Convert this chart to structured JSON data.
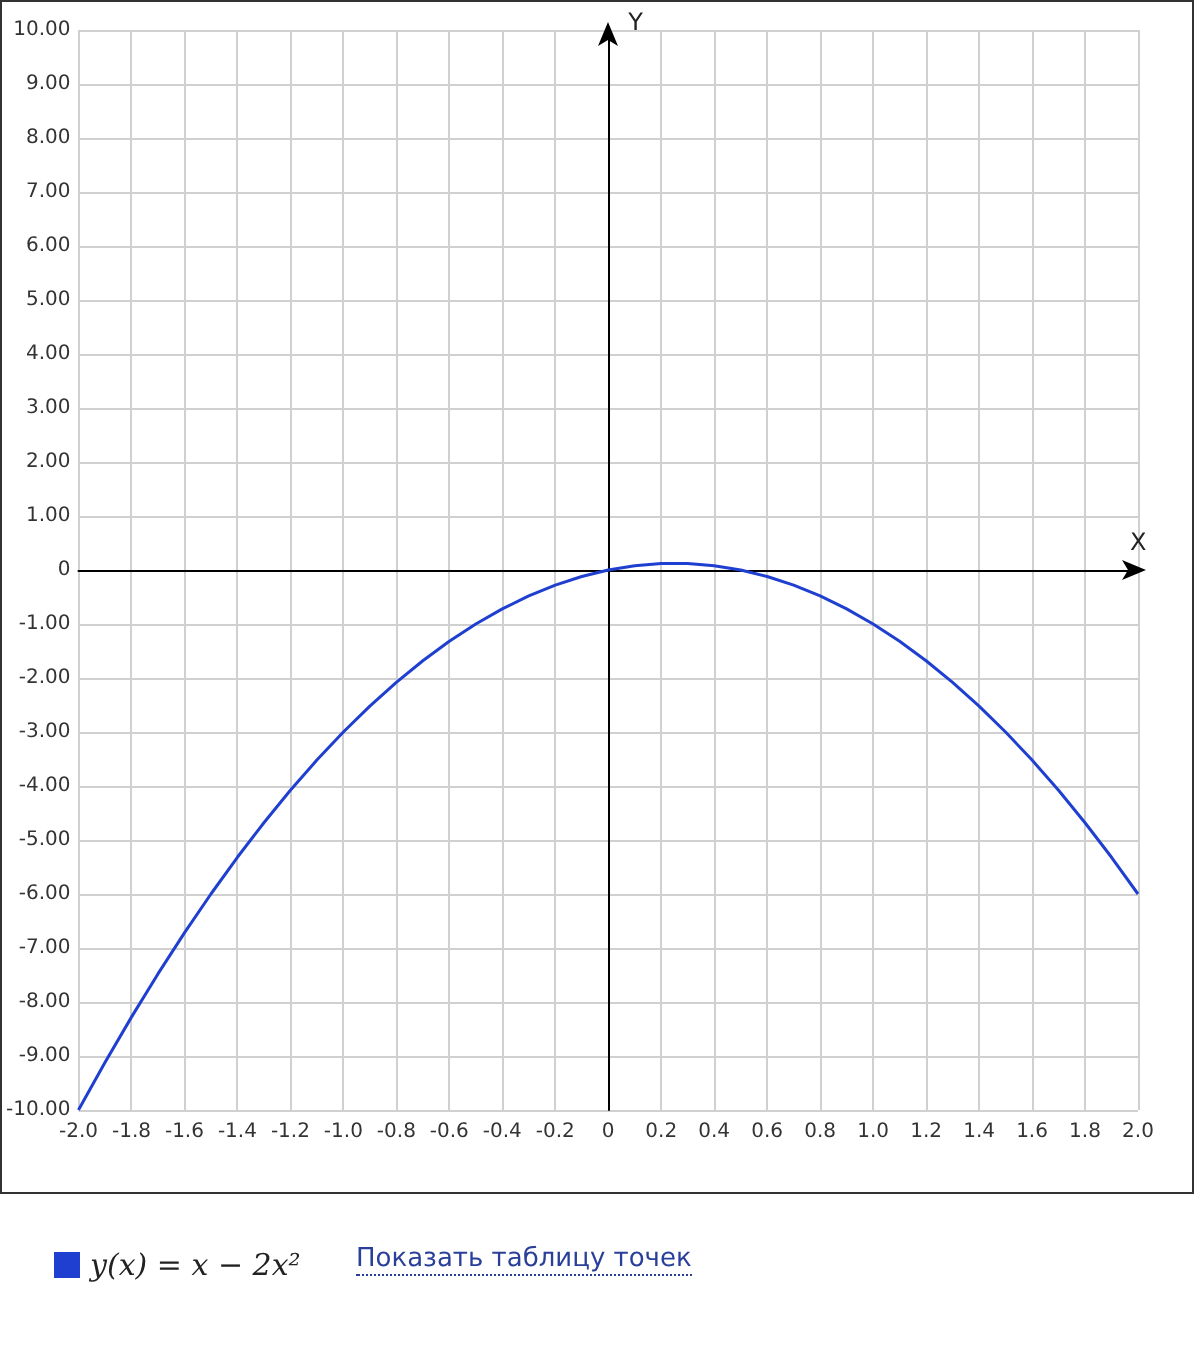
{
  "chart_data": {
    "type": "line",
    "xlabel": "X",
    "ylabel": "Y",
    "x": [
      -2.0,
      -1.9,
      -1.8,
      -1.7,
      -1.6,
      -1.5,
      -1.4,
      -1.3,
      -1.2,
      -1.1,
      -1.0,
      -0.9,
      -0.8,
      -0.7,
      -0.6,
      -0.5,
      -0.4,
      -0.3,
      -0.2,
      -0.1,
      0,
      0.1,
      0.2,
      0.3,
      0.4,
      0.5,
      0.6,
      0.7,
      0.8,
      0.9,
      1.0,
      1.1,
      1.2,
      1.3,
      1.4,
      1.5,
      1.6,
      1.7,
      1.8,
      1.9,
      2.0
    ],
    "series": [
      {
        "name": "y(x) = x − 2x²",
        "color": "#1f3fd0",
        "values": [
          -10,
          -9.12,
          -8.28,
          -7.48,
          -6.72,
          -6,
          -5.32,
          -4.68,
          -4.08,
          -3.52,
          -3,
          -2.52,
          -2.08,
          -1.68,
          -1.32,
          -1,
          -0.72,
          -0.48,
          -0.28,
          -0.12,
          0,
          0.08,
          0.12,
          0.12,
          0.08,
          0,
          -0.12,
          -0.28,
          -0.48,
          -0.72,
          -1,
          -1.32,
          -1.68,
          -2.08,
          -2.52,
          -3,
          -3.52,
          -4.08,
          -4.68,
          -5.32,
          -6
        ]
      }
    ],
    "xlim": [
      -2,
      2
    ],
    "ylim": [
      -10,
      10
    ],
    "xticks": [
      {
        "value": -2,
        "label": "-2.0"
      },
      {
        "value": -1.8,
        "label": "-1.8"
      },
      {
        "value": -1.6,
        "label": "-1.6"
      },
      {
        "value": -1.4,
        "label": "-1.4"
      },
      {
        "value": -1.2,
        "label": "-1.2"
      },
      {
        "value": -1,
        "label": "-1.0"
      },
      {
        "value": -0.8,
        "label": "-0.8"
      },
      {
        "value": -0.6,
        "label": "-0.6"
      },
      {
        "value": -0.4,
        "label": "-0.4"
      },
      {
        "value": -0.2,
        "label": "-0.2"
      },
      0,
      {
        "value": 0.2,
        "label": "0.2"
      },
      {
        "value": 0.4,
        "label": "0.4"
      },
      {
        "value": 0.6,
        "label": "0.6"
      },
      {
        "value": 0.8,
        "label": "0.8"
      },
      {
        "value": 1,
        "label": "1.0"
      },
      {
        "value": 1.2,
        "label": "1.2"
      },
      {
        "value": 1.4,
        "label": "1.4"
      },
      {
        "value": 1.6,
        "label": "1.6"
      },
      {
        "value": 1.8,
        "label": "1.8"
      },
      {
        "value": 2,
        "label": "2.0"
      }
    ],
    "yticks": [
      {
        "value": -10,
        "label": "-10.00"
      },
      {
        "value": -9,
        "label": "-9.00"
      },
      {
        "value": -8,
        "label": "-8.00"
      },
      {
        "value": -7,
        "label": "-7.00"
      },
      {
        "value": -6,
        "label": "-6.00"
      },
      {
        "value": -5,
        "label": "-5.00"
      },
      {
        "value": -4,
        "label": "-4.00"
      },
      {
        "value": -3,
        "label": "-3.00"
      },
      {
        "value": -2,
        "label": "-2.00"
      },
      {
        "value": -1,
        "label": "-1.00"
      },
      0,
      {
        "value": 1,
        "label": "1.00"
      },
      {
        "value": 2,
        "label": "2.00"
      },
      {
        "value": 3,
        "label": "3.00"
      },
      {
        "value": 4,
        "label": "4.00"
      },
      {
        "value": 5,
        "label": "5.00"
      },
      {
        "value": 6,
        "label": "6.00"
      },
      {
        "value": 7,
        "label": "7.00"
      },
      {
        "value": 8,
        "label": "8.00"
      },
      {
        "value": 9,
        "label": "9.00"
      },
      {
        "value": 10,
        "label": "10.00"
      }
    ],
    "grid": true,
    "legend": "bottom left",
    "marker": "none",
    "line_style": "solid",
    "annotations": [
      "Показать таблицу точек"
    ]
  }
}
